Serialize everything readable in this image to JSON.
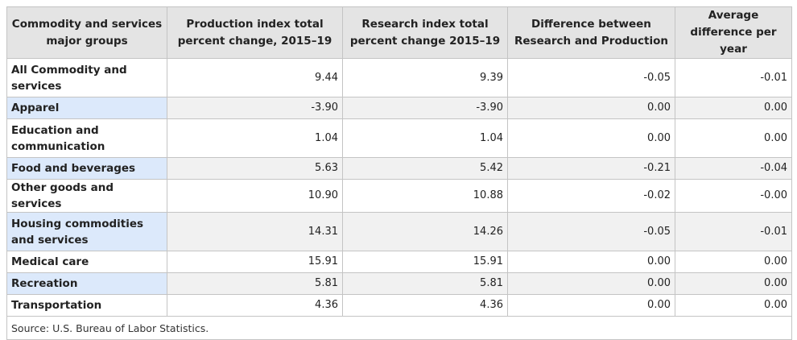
{
  "table": {
    "headers": [
      "Commodity and services major groups",
      "Production index total percent change, 2015–19",
      "Research index total percent change 2015–19",
      "Difference between Research and Production",
      "Average difference per year"
    ],
    "rows": [
      {
        "group": "All Commodity and services",
        "production": "9.44",
        "research": "9.39",
        "difference": "-0.05",
        "avg_per_year": "-0.01"
      },
      {
        "group": "Apparel",
        "production": "-3.90",
        "research": "-3.90",
        "difference": "0.00",
        "avg_per_year": "0.00"
      },
      {
        "group": "Education and communication",
        "production": "1.04",
        "research": "1.04",
        "difference": "0.00",
        "avg_per_year": "0.00"
      },
      {
        "group": "Food and beverages",
        "production": "5.63",
        "research": "5.42",
        "difference": "-0.21",
        "avg_per_year": "-0.04"
      },
      {
        "group": "Other goods and services",
        "production": "10.90",
        "research": "10.88",
        "difference": "-0.02",
        "avg_per_year": "-0.00"
      },
      {
        "group": "Housing commodities and services",
        "production": "14.31",
        "research": "14.26",
        "difference": "-0.05",
        "avg_per_year": "-0.01"
      },
      {
        "group": "Medical care",
        "production": "15.91",
        "research": "15.91",
        "difference": "0.00",
        "avg_per_year": "0.00"
      },
      {
        "group": "Recreation",
        "production": "5.81",
        "research": "5.81",
        "difference": "0.00",
        "avg_per_year": "0.00"
      },
      {
        "group": "Transportation",
        "production": "4.36",
        "research": "4.36",
        "difference": "0.00",
        "avg_per_year": "0.00"
      }
    ],
    "source": "Source: U.S. Bureau of Labor Statistics."
  },
  "colors": {
    "header_bg": "#e4e4e4",
    "row_head_shaded": "#dce9fb",
    "row_shaded": "#f1f1f1",
    "border": "#c4c4c4"
  }
}
